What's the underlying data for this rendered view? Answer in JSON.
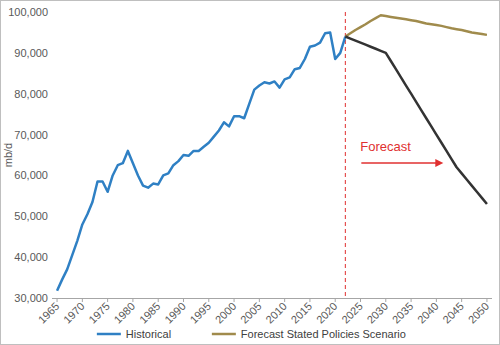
{
  "chart_data": {
    "type": "line",
    "y_label": "mb/d",
    "x": [
      1965,
      1966,
      1967,
      1968,
      1969,
      1970,
      1971,
      1972,
      1973,
      1974,
      1975,
      1976,
      1977,
      1978,
      1979,
      1980,
      1981,
      1982,
      1983,
      1984,
      1985,
      1986,
      1987,
      1988,
      1989,
      1990,
      1991,
      1992,
      1993,
      1994,
      1995,
      1996,
      1997,
      1998,
      1999,
      2000,
      2001,
      2002,
      2003,
      2004,
      2005,
      2006,
      2007,
      2008,
      2009,
      2010,
      2011,
      2012,
      2013,
      2014,
      2015,
      2016,
      2017,
      2018,
      2019,
      2020,
      2021,
      2022,
      2023,
      2024,
      2025,
      2026,
      2027,
      2028,
      2029,
      2030,
      2031,
      2032,
      2033,
      2034,
      2035,
      2036,
      2037,
      2038,
      2039,
      2040,
      2041,
      2042,
      2043,
      2044,
      2045,
      2046,
      2047,
      2048,
      2049,
      2050
    ],
    "series": [
      {
        "name": "Historical",
        "color": "#2f80c4",
        "values": [
          31800,
          34500,
          37000,
          40500,
          44000,
          48000,
          50500,
          53500,
          58500,
          58500,
          56000,
          60000,
          62500,
          63000,
          66000,
          63000,
          60000,
          57500,
          57000,
          58000,
          57800,
          60000,
          60500,
          62500,
          63500,
          65000,
          64800,
          66000,
          66000,
          67000,
          68000,
          69500,
          71000,
          73000,
          72000,
          74500,
          74500,
          74000,
          77500,
          81000,
          82000,
          82800,
          82500,
          83000,
          81500,
          83500,
          84000,
          86000,
          86300,
          88500,
          91500,
          91800,
          92500,
          94800,
          95000,
          88500,
          90000,
          94000,
          null,
          null,
          null,
          null,
          null,
          null,
          null,
          null,
          null,
          null,
          null,
          null,
          null,
          null,
          null,
          null,
          null,
          null,
          null,
          null,
          null,
          null,
          null,
          null,
          null,
          null,
          null,
          null
        ]
      },
      {
        "name": "Forecast Stated Policies Scenario",
        "color": "#a08b4c",
        "values": [
          null,
          null,
          null,
          null,
          null,
          null,
          null,
          null,
          null,
          null,
          null,
          null,
          null,
          null,
          null,
          null,
          null,
          null,
          null,
          null,
          null,
          null,
          null,
          null,
          null,
          null,
          null,
          null,
          null,
          null,
          null,
          null,
          null,
          null,
          null,
          null,
          null,
          null,
          null,
          null,
          null,
          null,
          null,
          null,
          null,
          null,
          null,
          null,
          null,
          null,
          null,
          null,
          null,
          null,
          null,
          null,
          null,
          94000,
          94800,
          95600,
          96300,
          97000,
          97800,
          98500,
          99200,
          99000,
          98800,
          98600,
          98400,
          98200,
          98000,
          97800,
          97500,
          97200,
          97000,
          96800,
          96600,
          96300,
          96000,
          95800,
          95600,
          95300,
          95000,
          94800,
          94600,
          94400
        ]
      },
      {
        "color": "#333333",
        "values": [
          null,
          null,
          null,
          null,
          null,
          null,
          null,
          null,
          null,
          null,
          null,
          null,
          null,
          null,
          null,
          null,
          null,
          null,
          null,
          null,
          null,
          null,
          null,
          null,
          null,
          null,
          null,
          null,
          null,
          null,
          null,
          null,
          null,
          null,
          null,
          null,
          null,
          null,
          null,
          null,
          null,
          null,
          null,
          null,
          null,
          null,
          null,
          null,
          null,
          null,
          null,
          null,
          null,
          null,
          null,
          null,
          null,
          94000,
          93500,
          93000,
          92500,
          92000,
          91500,
          91000,
          90500,
          90000,
          88000,
          86000,
          84000,
          82000,
          80000,
          78000,
          76000,
          74000,
          72000,
          70000,
          68000,
          66000,
          64000,
          62000,
          60500,
          59000,
          57500,
          56000,
          54500,
          53000
        ]
      }
    ],
    "xlim": [
      1964,
      2051
    ],
    "xticks": [
      1965,
      1970,
      1975,
      1980,
      1985,
      1990,
      1995,
      2000,
      2005,
      2010,
      2015,
      2020,
      2025,
      2030,
      2035,
      2040,
      2045,
      2050
    ],
    "ylim": [
      30000,
      100000
    ],
    "yticks": [
      {
        "value": 30000,
        "label": "30,000"
      },
      {
        "value": 40000,
        "label": "40,000"
      },
      {
        "value": 50000,
        "label": "50,000"
      },
      {
        "value": 60000,
        "label": "60,000"
      },
      {
        "value": 70000,
        "label": "70,000"
      },
      {
        "value": 80000,
        "label": "80,000"
      },
      {
        "value": 90000,
        "label": "90,000"
      },
      {
        "value": 100000,
        "label": "100,000"
      }
    ],
    "annotations": [
      {
        "text": "Forecast",
        "x": 2022
      }
    ],
    "grid": false,
    "legend": "bottom"
  }
}
